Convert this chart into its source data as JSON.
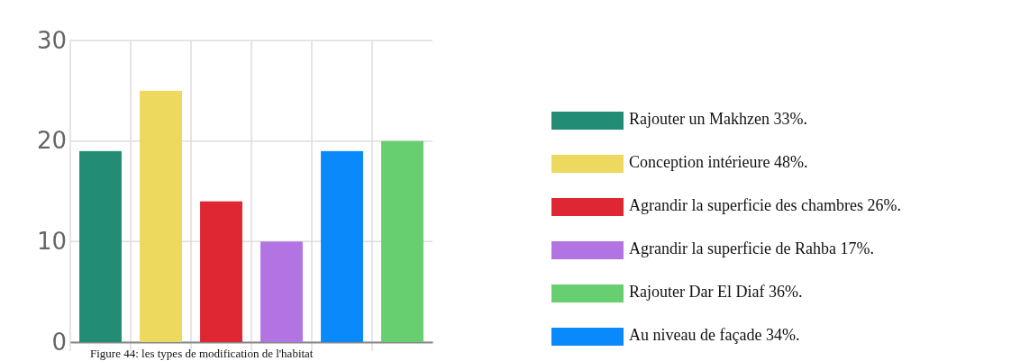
{
  "chart_data": {
    "type": "bar",
    "categories": [
      null,
      null,
      null,
      null,
      null,
      null
    ],
    "series": [
      {
        "name": "Rajouter un Makhzen 33%.",
        "color": "#228c74",
        "values": [
          19,
          null,
          null,
          null,
          null,
          null
        ]
      },
      {
        "name": "Conception intérieure 48%.",
        "color": "#ecd95e",
        "values": [
          null,
          25,
          null,
          null,
          null,
          null
        ]
      },
      {
        "name": "Agrandir la superficie des chambres 26%.",
        "color": "#de2732",
        "values": [
          null,
          null,
          14,
          null,
          null,
          null
        ]
      },
      {
        "name": "Agrandir la superficie de Rahba 17%.",
        "color": "#b273e3",
        "values": [
          null,
          null,
          null,
          10,
          null,
          null
        ]
      },
      {
        "name": "Rajouter Dar El Diaf 36%.",
        "color": "#67cf70",
        "values": [
          null,
          null,
          null,
          null,
          null,
          20
        ]
      },
      {
        "name": "Au niveau de façade 34%.",
        "color": "#0a89fb",
        "values": [
          null,
          null,
          null,
          null,
          19,
          null
        ]
      }
    ],
    "ylim": [
      0,
      30
    ],
    "yticks": [
      0,
      10,
      20,
      30
    ],
    "grid": true,
    "legend": "right",
    "annotations": [
      "Figure 44: les types de modification de l'habitat"
    ]
  }
}
